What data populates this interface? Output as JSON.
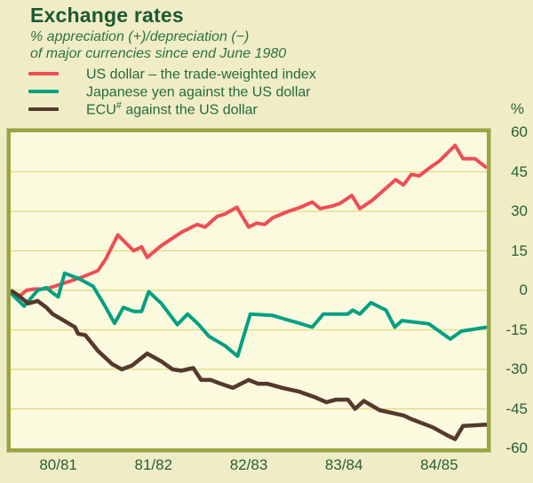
{
  "title": "Exchange rates",
  "subtitle_line1": "% appreciation (+)/depreciation (−)",
  "subtitle_line2": "of major currencies since end June 1980",
  "legend": [
    {
      "pre": "US dollar – the trade-weighted index",
      "sup": "",
      "post": "",
      "color": "#ee4d55"
    },
    {
      "pre": "Japanese yen against the US dollar",
      "sup": "",
      "post": "",
      "color": "#00a083"
    },
    {
      "pre": "ECU",
      "sup": "#",
      "post": " against the US dollar",
      "color": "#55392b"
    }
  ],
  "chart_data": {
    "type": "line",
    "title": "Exchange rates",
    "xlabel": "",
    "ylabel": "%",
    "x_unit": "months since end June 1980",
    "x_range": [
      0,
      60
    ],
    "ylim": [
      -60,
      60
    ],
    "grid": "horizontal",
    "grid_values": [
      45,
      30,
      15,
      0,
      -15,
      -30,
      -45
    ],
    "y_unit": "%",
    "y_ticks": [
      {
        "v": 60,
        "label": "60"
      },
      {
        "v": 45,
        "label": "45"
      },
      {
        "v": 30,
        "label": "30"
      },
      {
        "v": 15,
        "label": "15"
      },
      {
        "v": 0,
        "label": "0"
      },
      {
        "v": -15,
        "label": "-15"
      },
      {
        "v": -30,
        "label": "-30"
      },
      {
        "v": -45,
        "label": "-45"
      },
      {
        "v": -60,
        "label": "-60"
      }
    ],
    "x_ticks": [
      {
        "month": 6,
        "label": "80/81"
      },
      {
        "month": 18,
        "label": "81/82"
      },
      {
        "month": 30,
        "label": "82/83"
      },
      {
        "month": 42,
        "label": "83/84"
      },
      {
        "month": 54,
        "label": "84/85"
      }
    ],
    "series": [
      {
        "id": "us-dollar",
        "name": "US dollar – the trade-weighted index",
        "color": "#ee4d55",
        "points": [
          [
            0,
            0
          ],
          [
            1,
            -2.5
          ],
          [
            2,
            0
          ],
          [
            3,
            0.5
          ],
          [
            4,
            0.5
          ],
          [
            5,
            1
          ],
          [
            7,
            3
          ],
          [
            9,
            5
          ],
          [
            11,
            7.5
          ],
          [
            12,
            12
          ],
          [
            13.5,
            21
          ],
          [
            15.5,
            15
          ],
          [
            16.5,
            16.5
          ],
          [
            17.2,
            12.5
          ],
          [
            19,
            17
          ],
          [
            21.5,
            22
          ],
          [
            23.5,
            25
          ],
          [
            24.5,
            24
          ],
          [
            26,
            28
          ],
          [
            27,
            29
          ],
          [
            28.5,
            31.5
          ],
          [
            30,
            24
          ],
          [
            31,
            25.5
          ],
          [
            32,
            25
          ],
          [
            33,
            27.5
          ],
          [
            35,
            30
          ],
          [
            36.5,
            31.5
          ],
          [
            38,
            33.5
          ],
          [
            39,
            31
          ],
          [
            40.5,
            32
          ],
          [
            41.5,
            33
          ],
          [
            43,
            36
          ],
          [
            44,
            31
          ],
          [
            45.5,
            34
          ],
          [
            47,
            38
          ],
          [
            48.5,
            42
          ],
          [
            49.5,
            40
          ],
          [
            50.5,
            44
          ],
          [
            51.5,
            43.5
          ],
          [
            53,
            47
          ],
          [
            54,
            49
          ],
          [
            56,
            55
          ],
          [
            57,
            50
          ],
          [
            58.5,
            50
          ],
          [
            60,
            46.5
          ]
        ]
      },
      {
        "id": "japanese-yen",
        "name": "Japanese yen against the US dollar",
        "color": "#00a083",
        "points": [
          [
            0,
            -1
          ],
          [
            1.7,
            -6
          ],
          [
            3.4,
            0
          ],
          [
            4.5,
            1
          ],
          [
            5.3,
            -1
          ],
          [
            6,
            -2.5
          ],
          [
            6.8,
            6.5
          ],
          [
            8.6,
            4.5
          ],
          [
            10.4,
            1.5
          ],
          [
            11.8,
            -5.5
          ],
          [
            13.1,
            -12.5
          ],
          [
            14.2,
            -6.5
          ],
          [
            15.5,
            -8
          ],
          [
            16.5,
            -8
          ],
          [
            17.4,
            -0.5
          ],
          [
            19,
            -5
          ],
          [
            21,
            -13
          ],
          [
            22.3,
            -9
          ],
          [
            23.7,
            -13
          ],
          [
            25,
            -17.5
          ],
          [
            27,
            -21
          ],
          [
            28.6,
            -25
          ],
          [
            30.2,
            -9
          ],
          [
            33,
            -9.5
          ],
          [
            34.6,
            -11
          ],
          [
            36.4,
            -12.5
          ],
          [
            38,
            -14
          ],
          [
            39.4,
            -9
          ],
          [
            42.5,
            -9
          ],
          [
            43.1,
            -7.5
          ],
          [
            44,
            -9
          ],
          [
            45.4,
            -4.7
          ],
          [
            47.3,
            -7.5
          ],
          [
            48.4,
            -14
          ],
          [
            49.3,
            -11.5
          ],
          [
            52.7,
            -12.7
          ],
          [
            55.4,
            -18.5
          ],
          [
            56.8,
            -15.5
          ],
          [
            60,
            -14
          ]
        ]
      },
      {
        "id": "ecu",
        "name": "ECU# against the US dollar",
        "color": "#55392b",
        "points": [
          [
            0,
            0
          ],
          [
            1,
            -2
          ],
          [
            1.6,
            -3.5
          ],
          [
            2.2,
            -5
          ],
          [
            3.4,
            -4
          ],
          [
            4.5,
            -6.5
          ],
          [
            5.3,
            -9
          ],
          [
            6.7,
            -11.5
          ],
          [
            8.1,
            -14
          ],
          [
            8.5,
            -16.5
          ],
          [
            9.4,
            -17
          ],
          [
            11,
            -23
          ],
          [
            12.8,
            -28
          ],
          [
            14,
            -30
          ],
          [
            15.3,
            -28.5
          ],
          [
            17.2,
            -24
          ],
          [
            19,
            -27
          ],
          [
            20.4,
            -30
          ],
          [
            21.5,
            -30.5
          ],
          [
            23,
            -29.5
          ],
          [
            24,
            -34
          ],
          [
            25.2,
            -34
          ],
          [
            26.5,
            -35.5
          ],
          [
            28,
            -37
          ],
          [
            30,
            -34
          ],
          [
            31.2,
            -35.5
          ],
          [
            32.4,
            -35.5
          ],
          [
            34.2,
            -37
          ],
          [
            36.4,
            -38.5
          ],
          [
            38.3,
            -40.5
          ],
          [
            39.8,
            -42.5
          ],
          [
            41,
            -41.5
          ],
          [
            42.5,
            -41.5
          ],
          [
            43.4,
            -45
          ],
          [
            44.5,
            -42
          ],
          [
            46.5,
            -45.5
          ],
          [
            48,
            -46.5
          ],
          [
            49.5,
            -47.5
          ],
          [
            50.6,
            -49
          ],
          [
            53.2,
            -52
          ],
          [
            55,
            -55
          ],
          [
            56,
            -56.5
          ],
          [
            57,
            -51.5
          ],
          [
            60,
            -51
          ]
        ]
      }
    ]
  }
}
